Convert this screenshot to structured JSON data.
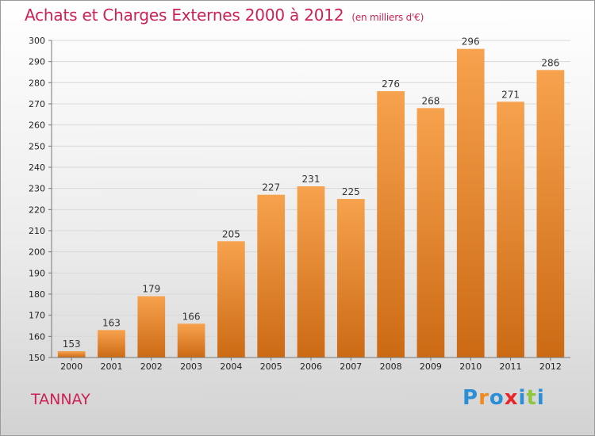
{
  "title": "Achats et Charges Externes 2000 à 2012",
  "subtitle": "(en milliers d'€)",
  "place": "TANNAY",
  "logo": {
    "letters": [
      "P",
      "r",
      "o",
      "x",
      "i",
      "t",
      "i"
    ],
    "colors": [
      "#2a8fd6",
      "#f08a1e",
      "#2a8fd6",
      "#e8262b",
      "#2a8fd6",
      "#8dc63f",
      "#2a8fd6"
    ]
  },
  "colors": {
    "bar_top": "#f7a24e",
    "bar_bottom": "#cc6a14",
    "accent": "#cc2255"
  },
  "chart_data": {
    "type": "bar",
    "title": "Achats et Charges Externes 2000 à 2012",
    "subtitle": "(en milliers d'€)",
    "categories": [
      "2000",
      "2001",
      "2002",
      "2003",
      "2004",
      "2005",
      "2006",
      "2007",
      "2008",
      "2009",
      "2010",
      "2011",
      "2012"
    ],
    "values": [
      153,
      163,
      179,
      166,
      205,
      227,
      231,
      225,
      276,
      268,
      296,
      271,
      286
    ],
    "ylim": [
      150,
      300
    ],
    "yticks": [
      150,
      160,
      170,
      180,
      190,
      200,
      210,
      220,
      230,
      240,
      250,
      260,
      270,
      280,
      290,
      300
    ],
    "grid": true
  }
}
